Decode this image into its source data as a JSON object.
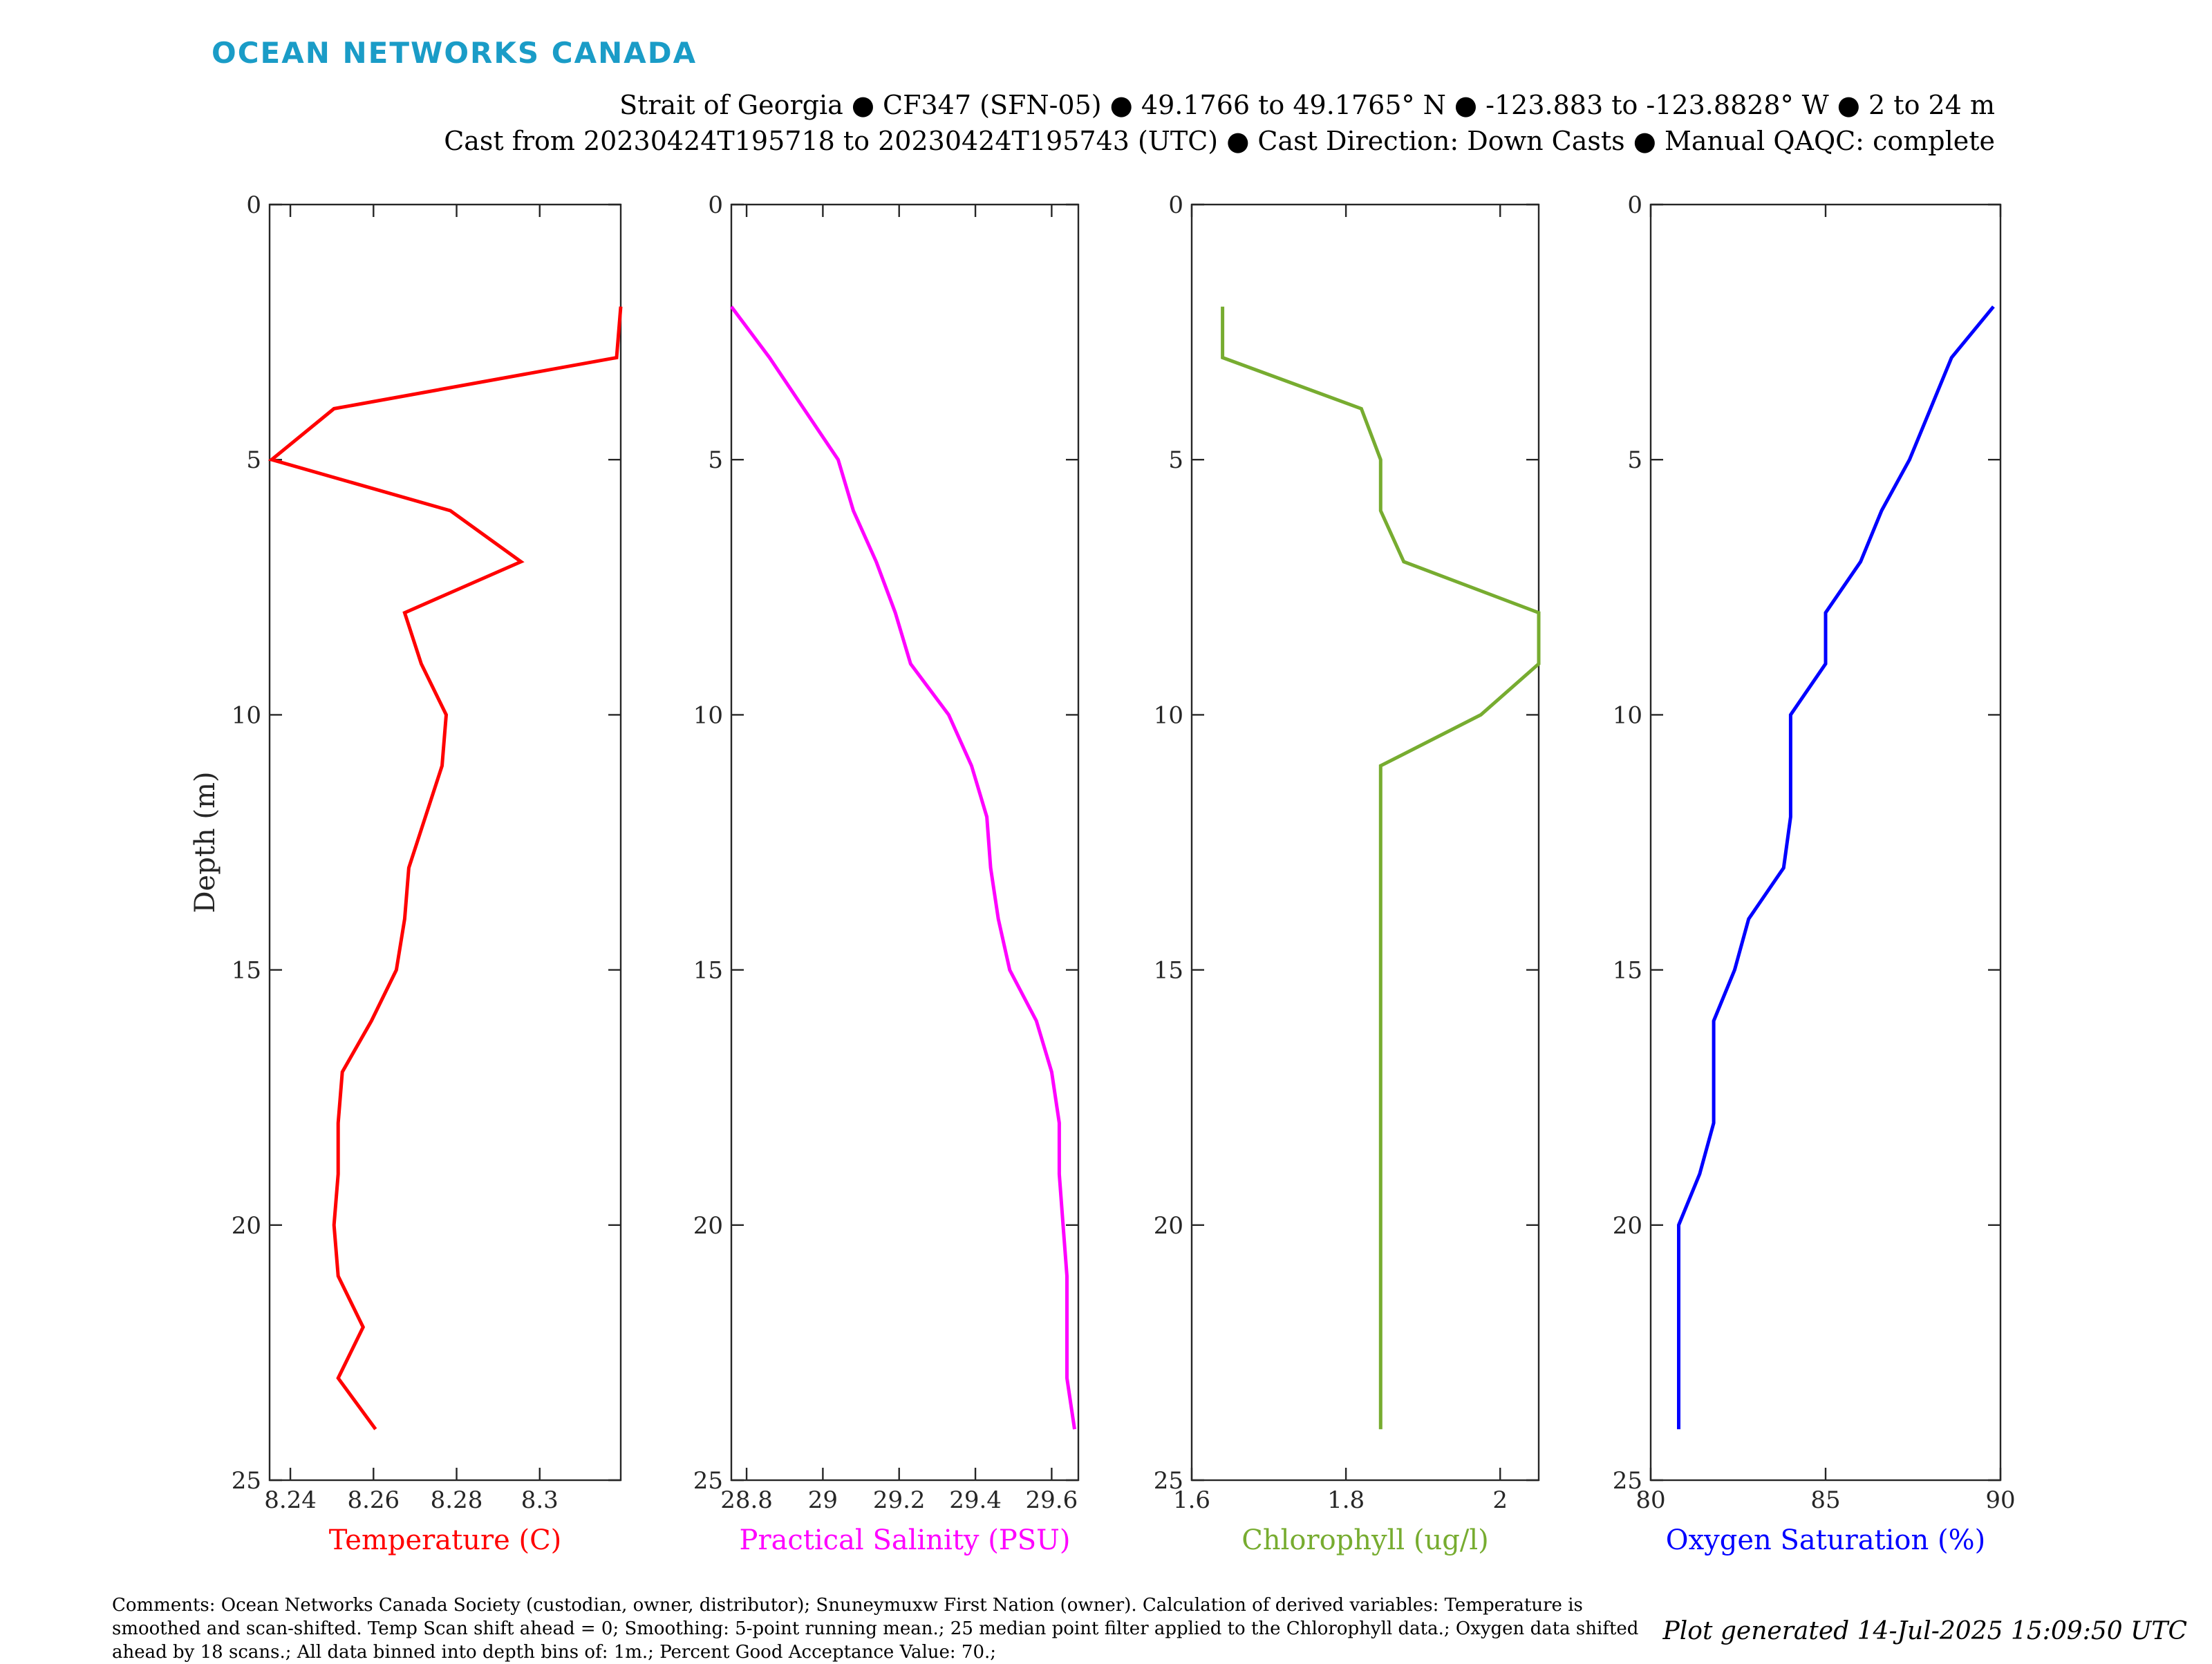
{
  "header": {
    "logo": "OCEAN NETWORKS CANADA",
    "title_line1": "Strait of Georgia ● CF347 (SFN-05) ● 49.1766 to 49.1765° N ● -123.883 to -123.8828° W ● 2 to 24 m",
    "title_line2": "Cast from 20230424T195718 to 20230424T195743 (UTC) ● Cast Direction: Down Casts ● Manual QAQC: complete"
  },
  "footer": {
    "comments": "Comments: Ocean Networks Canada Society (custodian, owner, distributor); Snuneymuxw First Nation (owner). Calculation of derived variables: Temperature is smoothed and scan-shifted. Temp Scan shift ahead = 0; Smoothing: 5-point running mean.; 25 median point filter applied to the Chlorophyll data.; Oxygen data shifted ahead by 18 scans.; All data binned into depth bins of: 1m.; Percent Good Acceptance Value: 70.;",
    "generated": "Plot generated 14-Jul-2025 15:09:50 UTC"
  },
  "chart_data": [
    {
      "type": "line",
      "xlabel": "Temperature (C)",
      "ylabel": "Depth (m)",
      "color": "#ff0000",
      "xlim": [
        8.235,
        8.3195
      ],
      "ylim": [
        0,
        25
      ],
      "y_reversed": true,
      "xticks": [
        8.24,
        8.26,
        8.28,
        8.3
      ],
      "xtick_labels": [
        "8.24",
        "8.26",
        "8.28",
        "8.3"
      ],
      "yticks": [
        0,
        5,
        10,
        15,
        20,
        25
      ],
      "series": [
        {
          "depth": [
            2,
            3,
            4,
            5,
            6,
            7,
            8,
            9,
            10,
            11,
            12,
            13,
            14,
            15,
            16,
            17,
            18,
            19,
            20,
            21,
            22,
            23,
            24
          ],
          "values": [
            8.3195,
            8.3185,
            8.2505,
            8.2355,
            8.2785,
            8.2955,
            8.2675,
            8.2715,
            8.2775,
            8.2765,
            8.2725,
            8.2685,
            8.2675,
            8.2655,
            8.2595,
            8.2525,
            8.2515,
            8.2515,
            8.2505,
            8.2515,
            8.2575,
            8.2515,
            8.2605
          ]
        }
      ]
    },
    {
      "type": "line",
      "xlabel": "Practical Salinity (PSU)",
      "color": "#ff00ff",
      "xlim": [
        28.76,
        29.67
      ],
      "ylim": [
        0,
        25
      ],
      "y_reversed": true,
      "xticks": [
        28.8,
        29,
        29.2,
        29.4,
        29.6
      ],
      "xtick_labels": [
        "28.8",
        "29",
        "29.2",
        "29.4",
        "29.6"
      ],
      "yticks": [
        0,
        5,
        10,
        15,
        20,
        25
      ],
      "series": [
        {
          "depth": [
            2,
            3,
            4,
            5,
            6,
            7,
            8,
            9,
            10,
            11,
            12,
            13,
            14,
            15,
            16,
            17,
            18,
            19,
            20,
            21,
            22,
            23,
            24
          ],
          "values": [
            28.76,
            28.86,
            28.95,
            29.04,
            29.08,
            29.14,
            29.19,
            29.23,
            29.33,
            29.39,
            29.43,
            29.44,
            29.46,
            29.49,
            29.56,
            29.6,
            29.62,
            29.62,
            29.63,
            29.64,
            29.64,
            29.64,
            29.66
          ]
        }
      ]
    },
    {
      "type": "line",
      "xlabel": "Chlorophyll (ug/l)",
      "color": "#77ac30",
      "xlim": [
        1.6,
        2.05
      ],
      "ylim": [
        0,
        25
      ],
      "y_reversed": true,
      "xticks": [
        1.6,
        1.8,
        2
      ],
      "xtick_labels": [
        "1.6",
        "1.8",
        "2"
      ],
      "yticks": [
        0,
        5,
        10,
        15,
        20,
        25
      ],
      "series": [
        {
          "depth": [
            2,
            3,
            4,
            5,
            6,
            7,
            8,
            9,
            10,
            11,
            12,
            13,
            14,
            15,
            16,
            17,
            18,
            19,
            20,
            21,
            22,
            23,
            24
          ],
          "values": [
            1.64,
            1.64,
            1.82,
            1.845,
            1.845,
            1.875,
            2.05,
            2.05,
            1.975,
            1.845,
            1.845,
            1.845,
            1.845,
            1.845,
            1.845,
            1.845,
            1.845,
            1.845,
            1.845,
            1.845,
            1.845,
            1.845,
            1.845
          ]
        }
      ]
    },
    {
      "type": "line",
      "xlabel": "Oxygen Saturation (%)",
      "color": "#0000ff",
      "xlim": [
        80,
        90
      ],
      "ylim": [
        0,
        25
      ],
      "y_reversed": true,
      "xticks": [
        80,
        85,
        90
      ],
      "xtick_labels": [
        "80",
        "85",
        "90"
      ],
      "yticks": [
        0,
        5,
        10,
        15,
        20,
        25
      ],
      "series": [
        {
          "depth": [
            2,
            3,
            4,
            5,
            6,
            7,
            8,
            9,
            10,
            11,
            12,
            13,
            14,
            15,
            16,
            17,
            18,
            19,
            20,
            21,
            22,
            23,
            24
          ],
          "values": [
            89.8,
            88.6,
            88.0,
            87.4,
            86.6,
            86.0,
            85.0,
            85.0,
            84.0,
            84.0,
            84.0,
            83.8,
            82.8,
            82.4,
            81.8,
            81.8,
            81.8,
            81.4,
            80.8,
            80.8,
            80.8,
            80.8,
            80.8
          ]
        }
      ]
    }
  ]
}
